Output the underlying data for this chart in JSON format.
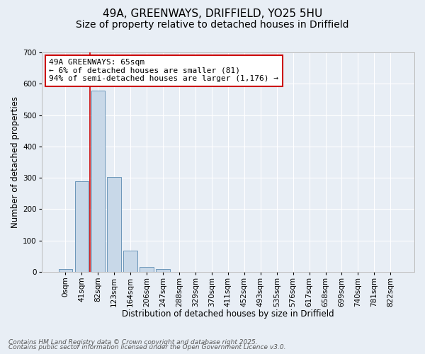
{
  "title_line1": "49A, GREENWAYS, DRIFFIELD, YO25 5HU",
  "title_line2": "Size of property relative to detached houses in Driffield",
  "xlabel": "Distribution of detached houses by size in Driffield",
  "ylabel": "Number of detached properties",
  "categories": [
    "0sqm",
    "41sqm",
    "82sqm",
    "123sqm",
    "164sqm",
    "206sqm",
    "247sqm",
    "288sqm",
    "329sqm",
    "370sqm",
    "411sqm",
    "452sqm",
    "493sqm",
    "535sqm",
    "576sqm",
    "617sqm",
    "658sqm",
    "699sqm",
    "740sqm",
    "781sqm",
    "822sqm"
  ],
  "bar_values": [
    8,
    288,
    578,
    303,
    68,
    15,
    8,
    0,
    0,
    0,
    0,
    0,
    0,
    0,
    0,
    0,
    0,
    0,
    0,
    0,
    0
  ],
  "bar_color": "#c8d8e8",
  "bar_edge_color": "#5a8ab0",
  "vline_x": 1.5,
  "vline_color": "#cc0000",
  "annotation_text": "49A GREENWAYS: 65sqm\n← 6% of detached houses are smaller (81)\n94% of semi-detached houses are larger (1,176) →",
  "annotation_box_color": "#ffffff",
  "annotation_box_edge": "#cc0000",
  "ylim": [
    0,
    700
  ],
  "yticks": [
    0,
    100,
    200,
    300,
    400,
    500,
    600,
    700
  ],
  "background_color": "#e8eef5",
  "grid_color": "#ffffff",
  "footer_line1": "Contains HM Land Registry data © Crown copyright and database right 2025.",
  "footer_line2": "Contains public sector information licensed under the Open Government Licence v3.0.",
  "title_fontsize": 11,
  "subtitle_fontsize": 10,
  "axis_label_fontsize": 8.5,
  "tick_fontsize": 7.5,
  "annotation_fontsize": 8,
  "footer_fontsize": 6.5
}
